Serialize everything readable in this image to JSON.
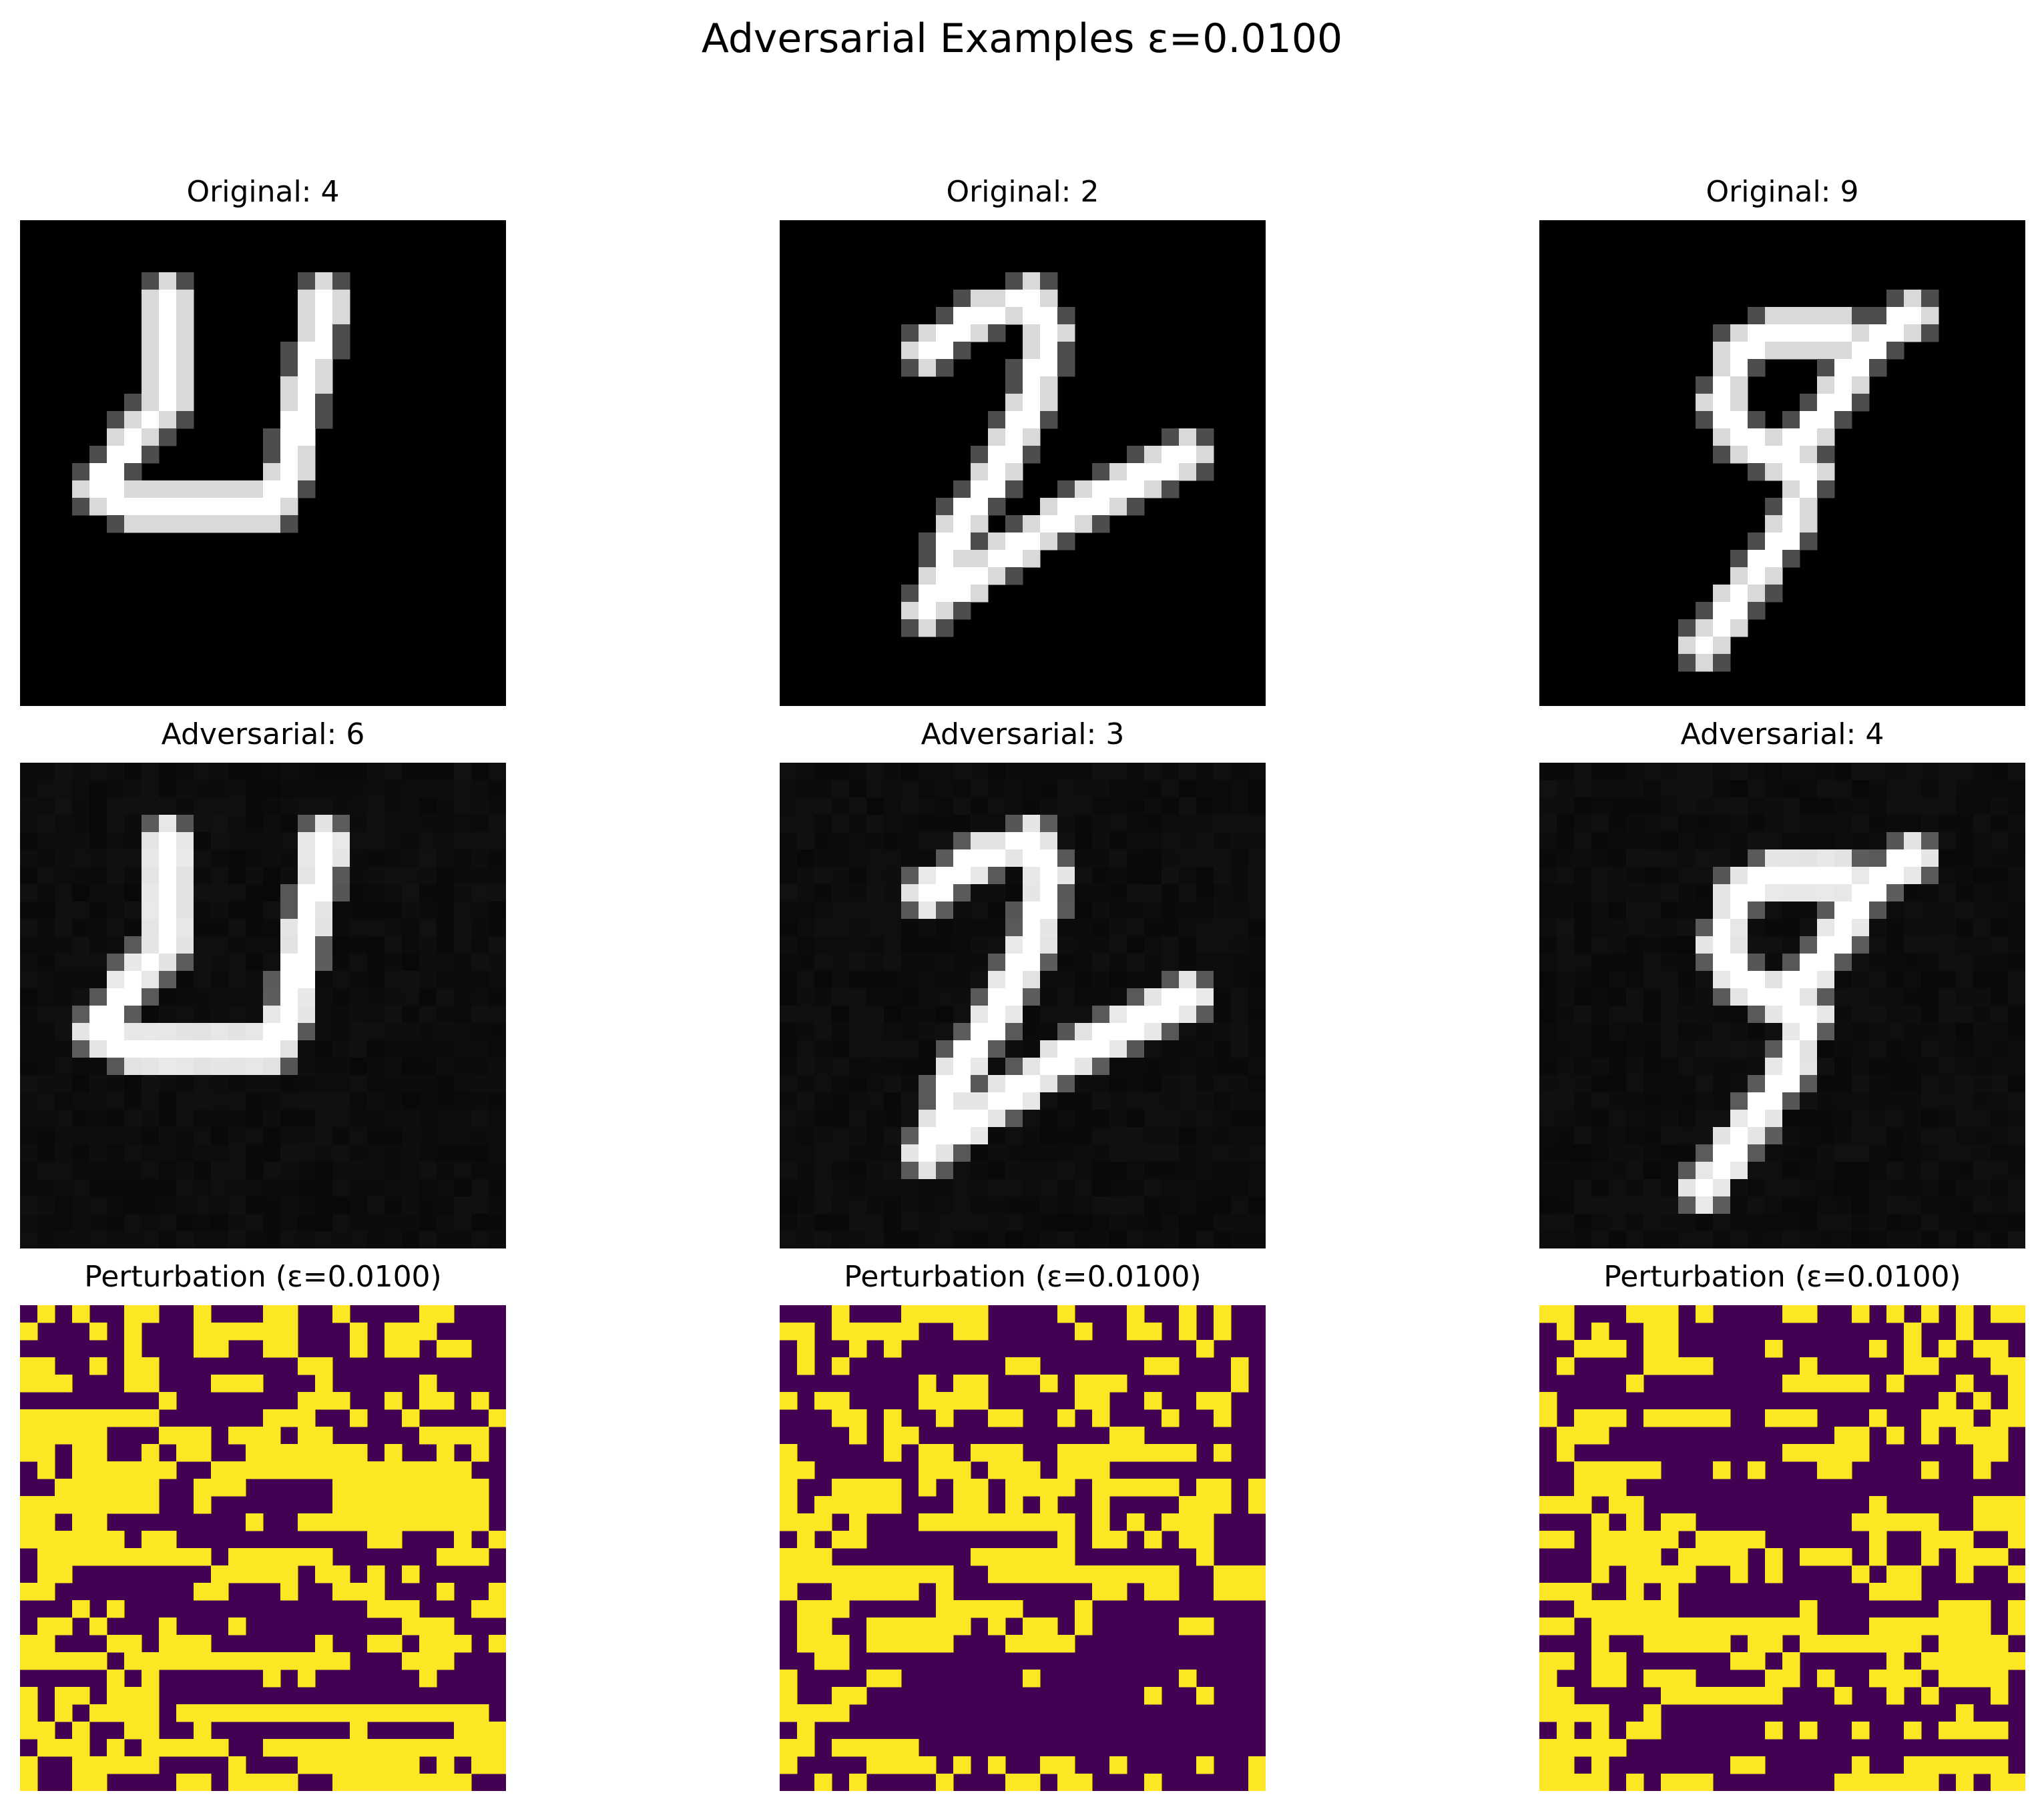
{
  "figure": {
    "title": "Adversarial Examples ε=0.0100"
  },
  "colors": {
    "background": "#ffffff",
    "viridis_low": "#440154",
    "viridis_high": "#fde725"
  },
  "chart_data": [
    {
      "type": "heatmap",
      "title": "Original: 4",
      "rows": 28,
      "cols": 28,
      "cmap": "gray",
      "vmin": 0,
      "vmax": 1,
      "axes": "off",
      "strokes": [
        [
          [
            8,
            4
          ],
          [
            8,
            10
          ],
          [
            6,
            12
          ],
          [
            4,
            15
          ]
        ],
        [
          [
            4,
            15
          ],
          [
            6,
            16
          ],
          [
            9,
            16
          ],
          [
            14,
            16
          ]
        ],
        [
          [
            14,
            16
          ],
          [
            15,
            14
          ],
          [
            16,
            9
          ],
          [
            17,
            5
          ],
          [
            17,
            4
          ]
        ]
      ]
    },
    {
      "type": "heatmap",
      "title": "Original: 2",
      "rows": 28,
      "cols": 28,
      "cmap": "gray",
      "vmin": 0,
      "vmax": 1,
      "axes": "off",
      "strokes": [
        [
          [
            8,
            7
          ],
          [
            11,
            5
          ],
          [
            14,
            4
          ]
        ],
        [
          [
            14,
            4
          ],
          [
            15,
            6
          ],
          [
            14,
            10
          ],
          [
            12,
            14
          ],
          [
            10,
            17
          ],
          [
            8,
            22
          ]
        ],
        [
          [
            8,
            22
          ],
          [
            12,
            19
          ],
          [
            17,
            16
          ],
          [
            23,
            13
          ]
        ]
      ]
    },
    {
      "type": "heatmap",
      "title": "Original: 9",
      "rows": 28,
      "cols": 28,
      "cmap": "gray",
      "vmin": 0,
      "vmax": 1,
      "axes": "off",
      "strokes": [
        [
          [
            11,
            7
          ],
          [
            13,
            6
          ],
          [
            15,
            6
          ],
          [
            17,
            6
          ]
        ],
        [
          [
            11,
            7
          ],
          [
            10,
            10
          ],
          [
            11,
            12
          ],
          [
            13,
            13
          ],
          [
            15,
            12
          ],
          [
            17,
            9
          ],
          [
            18,
            7
          ],
          [
            21,
            5
          ]
        ],
        [
          [
            13,
            13
          ],
          [
            15,
            14
          ],
          [
            14,
            17
          ],
          [
            12,
            20
          ],
          [
            9,
            24
          ]
        ]
      ]
    },
    {
      "type": "heatmap",
      "title": "Adversarial: 6",
      "rows": 28,
      "cols": 28,
      "cmap": "gray",
      "vmin": 0,
      "vmax": 1,
      "axes": "off",
      "epsilon": 0.01,
      "strokes": [
        [
          [
            8,
            4
          ],
          [
            8,
            10
          ],
          [
            6,
            12
          ],
          [
            4,
            15
          ]
        ],
        [
          [
            4,
            15
          ],
          [
            6,
            16
          ],
          [
            9,
            16
          ],
          [
            14,
            16
          ]
        ],
        [
          [
            14,
            16
          ],
          [
            15,
            14
          ],
          [
            16,
            9
          ],
          [
            17,
            5
          ],
          [
            17,
            4
          ]
        ]
      ]
    },
    {
      "type": "heatmap",
      "title": "Adversarial: 3",
      "rows": 28,
      "cols": 28,
      "cmap": "gray",
      "vmin": 0,
      "vmax": 1,
      "axes": "off",
      "epsilon": 0.01,
      "strokes": [
        [
          [
            8,
            7
          ],
          [
            11,
            5
          ],
          [
            14,
            4
          ]
        ],
        [
          [
            14,
            4
          ],
          [
            15,
            6
          ],
          [
            14,
            10
          ],
          [
            12,
            14
          ],
          [
            10,
            17
          ],
          [
            8,
            22
          ]
        ],
        [
          [
            8,
            22
          ],
          [
            12,
            19
          ],
          [
            17,
            16
          ],
          [
            23,
            13
          ]
        ]
      ]
    },
    {
      "type": "heatmap",
      "title": "Adversarial: 4",
      "rows": 28,
      "cols": 28,
      "cmap": "gray",
      "vmin": 0,
      "vmax": 1,
      "axes": "off",
      "epsilon": 0.01,
      "strokes": [
        [
          [
            11,
            7
          ],
          [
            13,
            6
          ],
          [
            15,
            6
          ],
          [
            17,
            6
          ]
        ],
        [
          [
            11,
            7
          ],
          [
            10,
            10
          ],
          [
            11,
            12
          ],
          [
            13,
            13
          ],
          [
            15,
            12
          ],
          [
            17,
            9
          ],
          [
            18,
            7
          ],
          [
            21,
            5
          ]
        ],
        [
          [
            13,
            13
          ],
          [
            15,
            14
          ],
          [
            14,
            17
          ],
          [
            12,
            20
          ],
          [
            9,
            24
          ]
        ]
      ]
    },
    {
      "type": "heatmap",
      "title": "Perturbation (ε=0.0100)",
      "rows": 28,
      "cols": 28,
      "cmap": "viridis",
      "vmin": -0.01,
      "vmax": 0.01,
      "axes": "off",
      "sign_rows": [
        "0101001100100011001000011000",
        "1000101000111111000101110000",
        "0000001000110011000101101100",
        "1100101100000000110000000000",
        "1110001100011100010000010000",
        "0000000010000000111001011010",
        "1111111100000011100100100001",
        "1111100011101110110000011110",
        "1101100101100111111101001010",
        "0101111110011111111111111100",
        "0011111100111000001111111110",
        "1111111100100000001111111110",
        "1101100000000100111111111110",
        "1111110110000000000011000101",
        "0111111111101111110000001110",
        "0110000000011111011010100000",
        "1100000000110001001110001001",
        "0001010000000000000011100011",
        "0110100010001000000000111000",
        "1100011011100000010011011101",
        "1111101111111111111000111000",
        "0000010100000010100000010000",
        "1011011100000000000000000000",
        "1010111101111111111111111110",
        "1101001100100000000100000111",
        "0111010111110011111111111111",
        "1001111100001000111111101011",
        "1001100001101111001111111100"
      ]
    },
    {
      "type": "heatmap",
      "title": "Perturbation (ε=0.0100)",
      "rows": 28,
      "cols": 28,
      "cmap": "viridis",
      "vmin": -0.01,
      "vmax": 0.01,
      "axes": "off",
      "sign_rows": [
        "0001000111110000100010010100",
        "1101111100110000010011010100",
        "0100101000000000000000001000",
        "0101000000000110000001100010",
        "0000000010110001011100000010",
        "1011000011110000011001001100",
        "0001101001001100101000100100",
        "0000101100000000000110000000",
        "1000001011011100111111110100",
        "1100000011101110111000000000",
        "1001111010110111101111101101",
        "1011111000110101001000011101",
        "1110100011111111101010111000",
        "0101100000000000101101011000",
        "1110000000011111100000001000",
        "1111111111001111111111100111",
        "1001111101000000001101100111",
        "0111000001111100010000000000",
        "0110011111101011010000011000",
        "0111011111000111100000000000",
        "0011000000000000000000000000",
        "1000011000000010000000010000",
        "1001100000000000000001001000",
        "1111000000000000000000000000",
        "0100000000000000000000000000",
        "1101111100000000000000000000",
        "1000011110101001100100001001",
        "0010100001000110110001000001"
      ]
    },
    {
      "type": "heatmap",
      "title": "Perturbation (ε=0.0100)",
      "rows": 28,
      "cols": 28,
      "cmap": "viridis",
      "vmin": -0.01,
      "vmax": 0.01,
      "axes": "off",
      "sign_rows": [
        "1100011101000011001010101011",
        "0101001100000000000001001000",
        "0011101100000100000101010110",
        "0100001111000001000001100011",
        "0000010000000011111010001001",
        "1000000000000000000000010101",
        "1011101111100111000100111011",
        "0111000000000000011010101110",
        "0100000000000011111000000110",
        "0011111000101000110000100100",
        "0011100000000000000000000000",
        "1110110000000000000100000111",
        "0001010110000000001111100111",
        "1101111101111000000100111001",
        "0001111011110101110100101110",
        "0001011110010100001011001001",
        "1110010100000000000111000000",
        "0011111100000001000000011101",
        "1101111111111111000111111101",
        "0001001111101101111111011110",
        "1101100000011010000010111111",
        "1001101110000110100111011110",
        "1100000111111100010010100010",
        "1111001000000000000000001000",
        "0101011000000101001001011110",
        "1111100000000000000000000000",
        "1101000000011000001001111110",
        "1111010111000000011111101011"
      ]
    }
  ]
}
